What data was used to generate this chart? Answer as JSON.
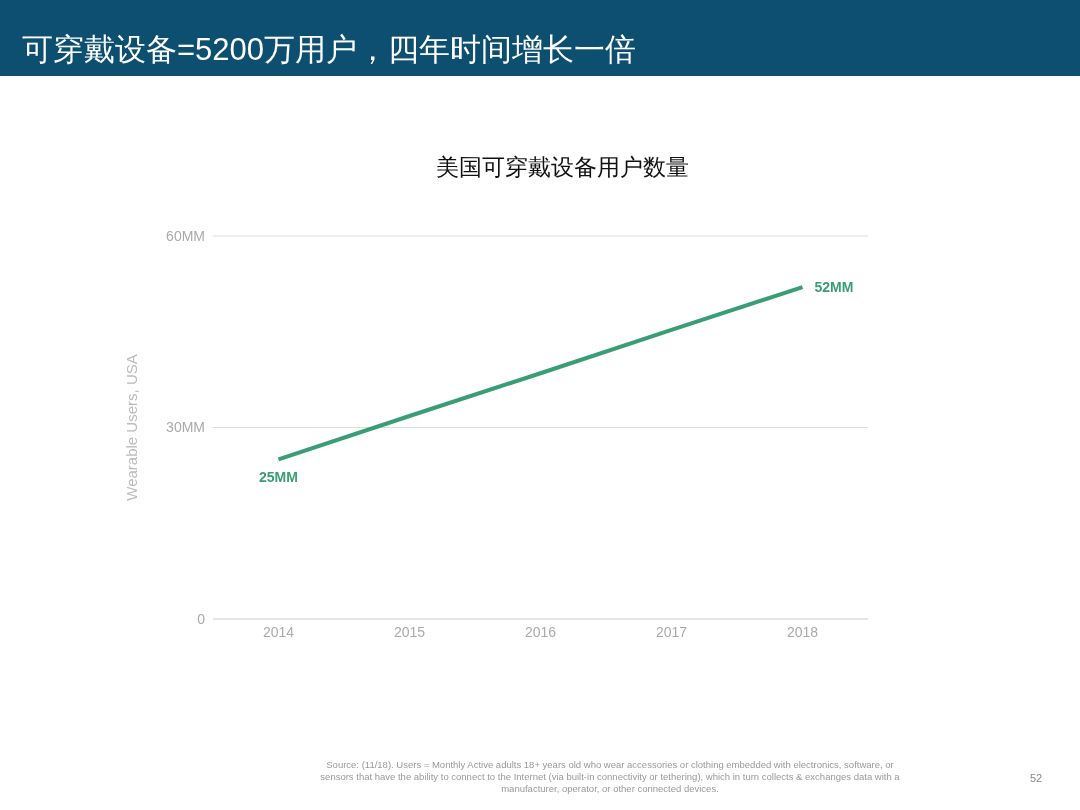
{
  "chart_data": {
    "type": "line",
    "title": "可穿戴设备=5200万用户，四年时间增长一倍",
    "subtitle": "美国可穿戴设备用户数量",
    "ylabel": "Wearable Users, USA",
    "categories": [
      "2014",
      "2015",
      "2016",
      "2017",
      "2018"
    ],
    "series": [
      {
        "color": "#3a9e74",
        "values": [
          25,
          31.8,
          38.5,
          45.3,
          52
        ],
        "value_labels": [
          "25MM",
          null,
          null,
          null,
          "52MM"
        ]
      }
    ],
    "ylim": [
      0,
      60
    ],
    "yticks": [
      {
        "value": 0,
        "label": "0"
      },
      {
        "value": 30,
        "label": "30MM"
      },
      {
        "value": 60,
        "label": "60MM"
      }
    ],
    "grid": "y",
    "legend": false,
    "annotations": [
      "Source: (11/18). Users = Monthly Active adults 18+ years old who wear accessories or clothing embedded with electronics, software, or sensors that have the ability to connect to the Internet (via built-in connectivity or tethering), which in turn collects & exchanges data with a manufacturer, operator, or other connected devices.",
      "52"
    ]
  }
}
